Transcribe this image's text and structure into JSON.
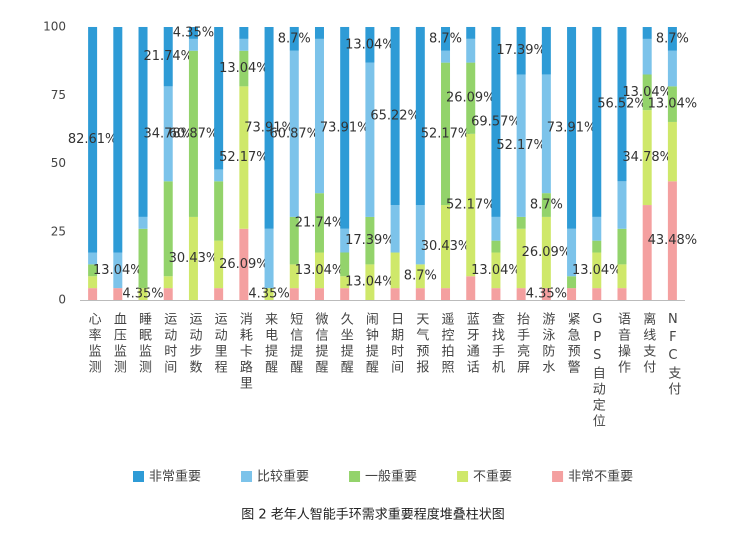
{
  "chart_data": {
    "type": "stacked_bar",
    "title": "图 2 老年人智能手环需求重要程度堆叠柱状图",
    "categories": [
      "心率监测",
      "血压监测",
      "睡眠监测",
      "运动时间",
      "运动步数",
      "运动里程",
      "消耗卡路里",
      "来电提醒",
      "短信提醒",
      "微信提醒",
      "久坐提醒",
      "闹钟提醒",
      "日期时间",
      "天气预报",
      "遥控拍照",
      "蓝牙通话",
      "查找手机",
      "抬手亮屏",
      "游泳防水",
      "紧急预警",
      "GPS自动定位",
      "语音操作",
      "离线支付",
      "NFC支付"
    ],
    "ylim": [
      0,
      100
    ],
    "yticks": [
      0,
      25,
      50,
      75,
      100
    ],
    "series": [
      {
        "name": "非常重要",
        "color": "#2e9bd6",
        "values": [
          82.61,
          82.61,
          69.57,
          21.74,
          4.35,
          52.17,
          4.35,
          73.91,
          8.7,
          4.35,
          73.91,
          13.04,
          65.22,
          65.22,
          8.7,
          4.35,
          69.57,
          17.39,
          17.39,
          73.91,
          69.57,
          56.52,
          4.35,
          8.7
        ],
        "value_labels": [
          "82.61%",
          null,
          null,
          "21.74%",
          "4.35%",
          null,
          null,
          "73.91%",
          "8.7%",
          null,
          "73.91%",
          "13.04%",
          "65.22%",
          null,
          "8.7%",
          null,
          "69.57%",
          "17.39%",
          null,
          "73.91%",
          null,
          "56.52%",
          null,
          "8.7%"
        ]
      },
      {
        "name": "比较重要",
        "color": "#7cc3ea",
        "values": [
          4.35,
          13.04,
          4.35,
          34.78,
          4.35,
          4.35,
          4.35,
          21.74,
          60.87,
          56.52,
          8.7,
          56.52,
          17.39,
          21.74,
          4.35,
          8.7,
          8.7,
          52.17,
          43.48,
          17.39,
          8.7,
          17.39,
          13.04,
          13.04
        ],
        "value_labels": [
          null,
          "13.04%",
          null,
          "34.78%",
          null,
          null,
          null,
          null,
          "60.87%",
          null,
          null,
          null,
          null,
          null,
          null,
          null,
          null,
          "52.17%",
          null,
          null,
          null,
          null,
          null,
          null
        ]
      },
      {
        "name": "一般重要",
        "color": "#93d36b",
        "values": [
          4.35,
          0,
          21.74,
          34.78,
          60.87,
          21.74,
          13.04,
          0,
          17.39,
          21.74,
          8.7,
          17.39,
          0,
          0,
          52.17,
          26.09,
          4.35,
          4.35,
          8.7,
          4.35,
          4.35,
          13.04,
          13.04,
          13.04
        ],
        "value_labels": [
          null,
          null,
          null,
          null,
          "60.87%",
          null,
          "13.04%",
          null,
          null,
          "21.74%",
          null,
          "17.39%",
          null,
          null,
          "52.17%",
          "26.09%",
          null,
          null,
          "8.7%",
          null,
          null,
          null,
          "13.04%",
          "13.04%"
        ]
      },
      {
        "name": "不重要",
        "color": "#cfe86a",
        "values": [
          4.35,
          0,
          4.35,
          4.35,
          30.43,
          17.39,
          52.17,
          4.35,
          8.7,
          13.04,
          4.35,
          13.04,
          13.04,
          8.7,
          30.43,
          52.17,
          13.04,
          21.74,
          26.09,
          0,
          13.04,
          8.7,
          34.78,
          21.74
        ],
        "value_labels": [
          null,
          null,
          "4.35%",
          null,
          "30.43%",
          null,
          "52.17%",
          "4.35%",
          null,
          "13.04%",
          null,
          "13.04%",
          null,
          "8.7%",
          "30.43%",
          "52.17%",
          "13.04%",
          null,
          "26.09%",
          null,
          "13.04%",
          null,
          "34.78%",
          null
        ]
      },
      {
        "name": "非常不重要",
        "color": "#f4a0a0",
        "values": [
          4.35,
          4.35,
          0,
          4.35,
          0,
          4.35,
          26.09,
          0,
          4.35,
          4.35,
          4.35,
          0,
          4.35,
          4.35,
          4.35,
          8.7,
          4.35,
          4.35,
          4.35,
          4.35,
          4.35,
          4.35,
          34.78,
          43.48
        ],
        "value_labels": [
          null,
          null,
          null,
          null,
          null,
          null,
          "26.09%",
          null,
          null,
          null,
          null,
          null,
          null,
          null,
          null,
          null,
          null,
          null,
          "4.35%",
          null,
          null,
          null,
          null,
          "43.48%"
        ]
      }
    ]
  }
}
